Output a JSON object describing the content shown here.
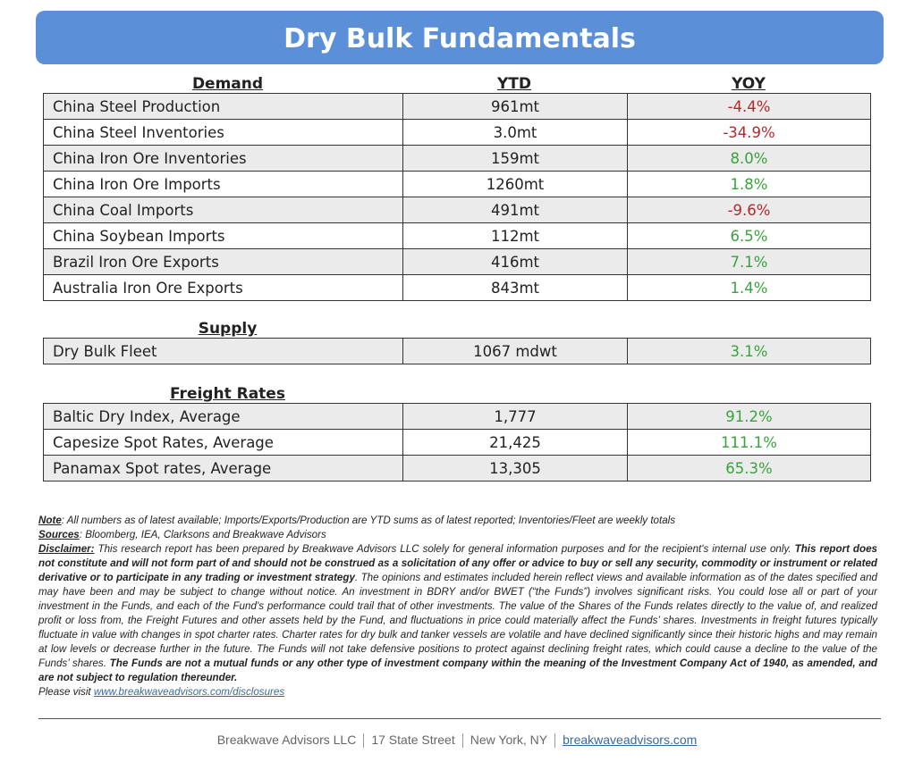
{
  "title": "Dry Bulk Fundamentals",
  "demand": {
    "header": "Demand",
    "ytd_header": "YTD",
    "yoy_header": "YOY",
    "rows": [
      {
        "label": "China Steel Production",
        "ytd": "961mt",
        "yoy": "-4.4%",
        "sign": "neg"
      },
      {
        "label": "China Steel Inventories",
        "ytd": "3.0mt",
        "yoy": "-34.9%",
        "sign": "neg"
      },
      {
        "label": "China Iron Ore Inventories",
        "ytd": "159mt",
        "yoy": "8.0%",
        "sign": "pos"
      },
      {
        "label": "China Iron Ore Imports",
        "ytd": "1260mt",
        "yoy": "1.8%",
        "sign": "pos"
      },
      {
        "label": "China Coal Imports",
        "ytd": "491mt",
        "yoy": "-9.6%",
        "sign": "neg"
      },
      {
        "label": "China Soybean Imports",
        "ytd": "112mt",
        "yoy": "6.5%",
        "sign": "pos"
      },
      {
        "label": "Brazil Iron Ore Exports",
        "ytd": "416mt",
        "yoy": "7.1%",
        "sign": "pos"
      },
      {
        "label": "Australia Iron Ore Exports",
        "ytd": "843mt",
        "yoy": "1.4%",
        "sign": "pos"
      }
    ]
  },
  "supply": {
    "header": "Supply",
    "rows": [
      {
        "label": "Dry Bulk Fleet",
        "ytd": "1067 mdwt",
        "yoy": "3.1%",
        "sign": "pos"
      }
    ]
  },
  "freight": {
    "header": "Freight Rates",
    "rows": [
      {
        "label": "Baltic Dry Index, Average",
        "ytd": "1,777",
        "yoy": "91.2%",
        "sign": "pos"
      },
      {
        "label": "Capesize Spot Rates, Average",
        "ytd": "21,425",
        "yoy": "111.1%",
        "sign": "pos"
      },
      {
        "label": "Panamax Spot rates, Average",
        "ytd": "13,305",
        "yoy": "65.3%",
        "sign": "pos"
      }
    ]
  },
  "notes": {
    "note_label": "Note",
    "note_text": ": All numbers as of latest available; Imports/Exports/Production are YTD sums as of latest reported; Inventories/Fleet are weekly totals",
    "sources_label": "Sources",
    "sources_text": ": Bloomberg, IEA, Clarksons and Breakwave Advisors",
    "disclaimer_label": "Disclaimer:",
    "disclaimer_1": " This research report has been prepared by Breakwave Advisors LLC solely for general information purposes and for the recipient's internal use only. ",
    "disclaimer_bold_1": "This report does not constitute and will not form part of and should not be construed as a solicitation of any offer or advice to buy or sell any security, commodity or instrument or related derivative or to participate in any trading or investment strategy",
    "disclaimer_2": ". The opinions and estimates included herein reflect views and available information as of the dates specified and may have been and may be subject to change without notice. An investment in BDRY and/or BWET (“the Funds”) involves significant risks. You could lose all or part of your investment in the Funds, and each of the Fund’s performance could trail that of other investments. The value of the Shares of the Funds relates directly to the value of, and realized profit or loss from, the Freight Futures and other assets held by the Fund, and fluctuations in price could materially affect the Funds’ shares. Investments in freight futures typically fluctuate in value with changes in spot charter rates. Charter rates for dry bulk and tanker vessels are volatile and have declined significantly since their historic highs and may remain at low levels or decrease further in the future. The Funds will not take defensive positions to protect against declining freight rates, which could cause a decline to the value of the Funds’ shares. ",
    "disclaimer_bold_2": "The Funds are not a mutual funds or any other type of investment company within the meaning of the Investment Company Act of 1940, as amended, and are not subject to regulation thereunder.",
    "visit_text": "Please visit ",
    "visit_link": "www.breakwaveadvisors.com/disclosures"
  },
  "footer": {
    "company": "Breakwave Advisors LLC",
    "street": "17 State Street",
    "city": "New York, NY",
    "website": "breakwaveadvisors.com"
  }
}
